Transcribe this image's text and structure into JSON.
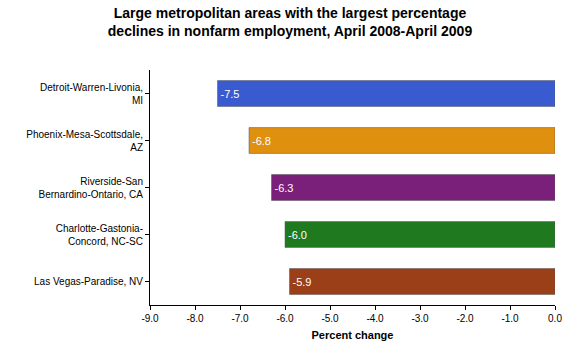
{
  "chart_data": {
    "type": "bar",
    "orientation": "horizontal",
    "title": "Large metropolitan areas with the largest percentage declines in nonfarm employment, April 2008-April 2009",
    "x_label": "Percent change",
    "categories": [
      "Detroit-Warren-Livonia, MI",
      "Phoenix-Mesa-Scottsdale, AZ",
      "Riverside-San Bernardino-Ontario, CA",
      "Charlotte-Gastonia-Concord, NC-SC",
      "Las Vegas-Paradise, NV"
    ],
    "values": [
      -7.5,
      -6.8,
      -6.3,
      -6.0,
      -5.9
    ],
    "value_labels": [
      "-7.5",
      "-6.8",
      "-6.3",
      "-6.0",
      "-5.9"
    ],
    "colors": [
      "#3a5bd0",
      "#e0900f",
      "#7a1f7a",
      "#1f7a1f",
      "#9a3f18"
    ],
    "data_labels": true,
    "grid": false,
    "xlim": [
      -9.0,
      0.0
    ],
    "xticks": [
      {
        "value": -9.0,
        "label": "-9.0"
      },
      {
        "value": -8.0,
        "label": "-8.0"
      },
      {
        "value": -7.0,
        "label": "-7.0"
      },
      {
        "value": -6.0,
        "label": "-6.0"
      },
      {
        "value": -5.0,
        "label": "-5.0"
      },
      {
        "value": -4.0,
        "label": "-4.0"
      },
      {
        "value": -3.0,
        "label": "-3.0"
      },
      {
        "value": -2.0,
        "label": "-2.0"
      },
      {
        "value": -1.0,
        "label": "-1.0"
      },
      {
        "value": 0.0,
        "label": "0.0"
      }
    ]
  }
}
